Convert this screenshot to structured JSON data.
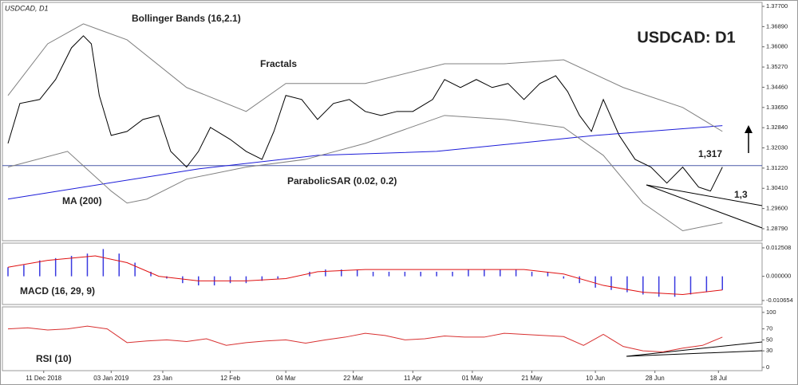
{
  "chart_data": [
    {
      "type": "line",
      "title": "USDCAD, D1",
      "heading": "USDCAD: D1",
      "annotations": [
        "Fractals",
        "ParabolicSAR (0.02, 0.2)",
        "1,317",
        "1,3"
      ],
      "xlim": [
        0,
        190
      ],
      "ylim": [
        1.2831,
        1.3786
      ],
      "yticks": [
        {
          "value": 1.377,
          "label": "1.37700"
        },
        {
          "value": 1.3689,
          "label": "1.36890"
        },
        {
          "value": 1.3608,
          "label": "1.36080"
        },
        {
          "value": 1.3527,
          "label": "1.35270"
        },
        {
          "value": 1.3446,
          "label": "1.34460"
        },
        {
          "value": 1.3365,
          "label": "1.33650"
        },
        {
          "value": 1.3284,
          "label": "1.32840"
        },
        {
          "value": 1.3203,
          "label": "1.32030"
        },
        {
          "value": 1.3122,
          "label": "1.31220"
        },
        {
          "value": 1.3041,
          "label": "1.30410"
        },
        {
          "value": 1.296,
          "label": "1.29600"
        },
        {
          "value": 1.2879,
          "label": "1.28790"
        }
      ],
      "last_price": 1.3132,
      "last_price_color": "#4a5aa8",
      "series": [
        {
          "color": "#000000",
          "x": [
            0,
            3,
            8,
            12,
            16,
            19,
            21,
            23,
            26,
            30,
            34,
            38,
            41,
            45,
            48,
            51,
            56,
            60,
            64,
            67,
            70,
            74,
            78,
            82,
            86,
            90,
            94,
            98,
            102,
            107,
            110,
            114,
            118,
            122,
            126,
            130,
            134,
            138,
            141,
            144,
            147,
            150,
            154,
            158,
            162,
            166,
            170,
            174,
            177,
            180
          ],
          "values": [
            1.3221,
            1.3381,
            1.3397,
            1.3477,
            1.3604,
            1.3652,
            1.362,
            1.3413,
            1.3253,
            1.3269,
            1.3317,
            1.3333,
            1.3189,
            1.3126,
            1.3189,
            1.3285,
            1.3237,
            1.3189,
            1.3157,
            1.3269,
            1.3413,
            1.3397,
            1.3317,
            1.3381,
            1.3397,
            1.3349,
            1.3333,
            1.3349,
            1.3349,
            1.3397,
            1.3477,
            1.3445,
            1.3477,
            1.3445,
            1.3461,
            1.3397,
            1.3461,
            1.3492,
            1.3429,
            1.3333,
            1.3269,
            1.3397,
            1.3253,
            1.3157,
            1.3126,
            1.3062,
            1.3126,
            1.3046,
            1.303,
            1.3126
          ]
        },
        {
          "name": "MA (200)",
          "color": "#1c1cd8",
          "x": [
            0,
            48,
            78,
            108,
            148,
            180
          ],
          "values": [
            1.2998,
            1.3119,
            1.3173,
            1.3189,
            1.3253,
            1.3292
          ]
        },
        {
          "name": "Bollinger Bands (16,2.1)",
          "color": "#808080",
          "upper": {
            "x": [
              0,
              10,
              19,
              30,
              45,
              60,
              70,
              90,
              110,
              125,
              140,
              155,
              170,
              180
            ],
            "values": [
              1.3413,
              1.362,
              1.37,
              1.3636,
              1.3445,
              1.3349,
              1.3461,
              1.3461,
              1.354,
              1.354,
              1.3556,
              1.3445,
              1.3365,
              1.3269
            ]
          },
          "lower": {
            "x": [
              0,
              15,
              26,
              30,
              35,
              45,
              60,
              75,
              90,
              110,
              125,
              140,
              150,
              160,
              170,
              180
            ],
            "values": [
              1.3126,
              1.3189,
              1.303,
              1.2982,
              1.2998,
              1.3078,
              1.3126,
              1.3157,
              1.3221,
              1.3333,
              1.3317,
              1.3285,
              1.3173,
              1.2982,
              1.2871,
              1.2903
            ]
          }
        }
      ]
    },
    {
      "type": "bar",
      "title": "MACD (16, 29, 9)",
      "color": "#3a3ae0",
      "xlim": [
        0,
        190
      ],
      "ylim": [
        -0.0124,
        0.0146
      ],
      "yticks": [
        0.012508,
        {
          "value": 0,
          "label": "0.000000"
        },
        -0.010654
      ],
      "x": [
        0,
        4,
        8,
        12,
        16,
        20,
        24,
        28,
        32,
        36,
        40,
        44,
        48,
        52,
        56,
        60,
        64,
        68,
        72,
        76,
        80,
        84,
        88,
        92,
        96,
        100,
        104,
        108,
        112,
        116,
        120,
        124,
        128,
        132,
        136,
        140,
        144,
        148,
        152,
        156,
        160,
        164,
        168,
        172,
        176,
        180
      ],
      "values": [
        0.004,
        0.005,
        0.007,
        0.008,
        0.009,
        0.01,
        0.012,
        0.01,
        0.006,
        0.002,
        -0.001,
        -0.003,
        -0.004,
        -0.004,
        -0.003,
        -0.003,
        -0.002,
        -0.001,
        0,
        0.002,
        0.003,
        0.003,
        0.003,
        0.002,
        0.002,
        0.002,
        0.002,
        0.002,
        0.002,
        0.003,
        0.003,
        0.003,
        0.003,
        0.002,
        0.002,
        -0.001,
        -0.003,
        -0.005,
        -0.006,
        -0.007,
        -0.008,
        -0.009,
        -0.009,
        -0.008,
        -0.007,
        -0.006
      ],
      "signal": {
        "color": "#e01010",
        "x": [
          0,
          10,
          22,
          30,
          38,
          48,
          60,
          70,
          78,
          90,
          110,
          130,
          140,
          150,
          160,
          170,
          180
        ],
        "values": [
          0.004,
          0.007,
          0.009,
          0.006,
          0,
          -0.002,
          -0.002,
          -0.001,
          0.002,
          0.003,
          0.003,
          0.003,
          0.001,
          -0.004,
          -0.007,
          -0.008,
          -0.006
        ]
      }
    },
    {
      "type": "line",
      "title": "RSI (10)",
      "color": "#d83030",
      "xlim": [
        0,
        190
      ],
      "ylim": [
        -6,
        110
      ],
      "yticks": [
        100,
        70,
        50,
        30,
        0
      ],
      "x": [
        0,
        5,
        10,
        15,
        20,
        25,
        30,
        35,
        40,
        45,
        50,
        55,
        60,
        65,
        70,
        75,
        80,
        85,
        90,
        95,
        100,
        105,
        110,
        115,
        120,
        125,
        130,
        135,
        140,
        145,
        150,
        155,
        160,
        165,
        170,
        175,
        180
      ],
      "values": [
        70,
        72,
        68,
        70,
        75,
        70,
        45,
        48,
        50,
        47,
        52,
        40,
        45,
        48,
        50,
        44,
        50,
        55,
        62,
        58,
        50,
        52,
        57,
        55,
        55,
        62,
        60,
        58,
        56,
        40,
        60,
        38,
        30,
        28,
        35,
        40,
        55
      ],
      "xticks": [
        {
          "value": 9,
          "label": "11 Dec 2018"
        },
        {
          "value": 26,
          "label": "03 Jan 2019"
        },
        {
          "value": 39,
          "label": "23 Jan"
        },
        {
          "value": 56,
          "label": "12 Feb"
        },
        {
          "value": 70,
          "label": "04 Mar"
        },
        {
          "value": 87,
          "label": "22 Mar"
        },
        {
          "value": 102,
          "label": "11 Apr"
        },
        {
          "value": 117,
          "label": "01 May"
        },
        {
          "value": 132,
          "label": "21 May"
        },
        {
          "value": 148,
          "label": "10 Jun"
        },
        {
          "value": 163,
          "label": "28 Jun"
        },
        {
          "value": 179,
          "label": "18 Jul"
        }
      ]
    }
  ]
}
